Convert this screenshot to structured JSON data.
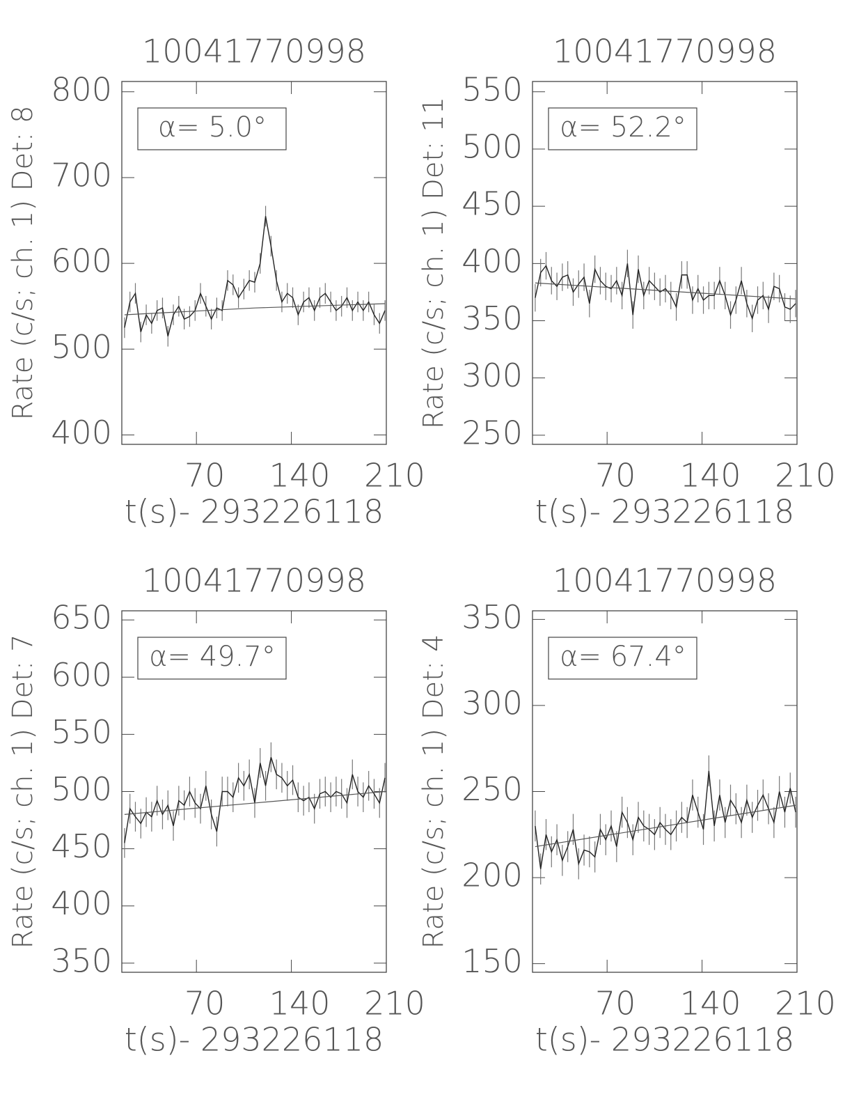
{
  "chart_data": [
    {
      "type": "line",
      "title": "10041770998",
      "xlabel": "t(s)- 293226118",
      "ylabel": "Rate (c/s; ch. 1) Det: 8",
      "annotation": "α= 5.0°",
      "color": "#222",
      "x": [
        17,
        21,
        25,
        29,
        33,
        37,
        41,
        45,
        49,
        53,
        57,
        61,
        65,
        69,
        73,
        77,
        81,
        85,
        89,
        93,
        97,
        101,
        105,
        109,
        113,
        117,
        121,
        125,
        129,
        133,
        137,
        141,
        145,
        149,
        153,
        157,
        161,
        165,
        169,
        173,
        177,
        181,
        185,
        189,
        193,
        197,
        201,
        205,
        209
      ],
      "values": [
        525,
        555,
        565,
        520,
        540,
        530,
        545,
        548,
        515,
        540,
        550,
        535,
        538,
        545,
        565,
        550,
        535,
        548,
        545,
        580,
        575,
        560,
        570,
        580,
        578,
        600,
        655,
        620,
        580,
        555,
        565,
        560,
        540,
        555,
        560,
        545,
        560,
        565,
        555,
        545,
        550,
        560,
        545,
        555,
        545,
        555,
        540,
        530,
        545
      ],
      "error": 12,
      "fit_x": [
        17,
        113,
        209
      ],
      "fit_values": [
        540,
        548,
        553
      ],
      "xlim": [
        15,
        210
      ],
      "ylim": [
        389,
        812
      ],
      "xticks": [
        70,
        140,
        210
      ],
      "yticks": [
        400,
        500,
        600,
        700,
        800
      ]
    },
    {
      "type": "line",
      "title": "10041770998",
      "xlabel": "t(s)- 293226118",
      "ylabel": "Rate (c/s; ch. 1) Det: 11",
      "annotation": "α= 52.2°",
      "color": "#222",
      "x": [
        17,
        21,
        25,
        29,
        33,
        37,
        41,
        45,
        49,
        53,
        57,
        61,
        65,
        69,
        73,
        77,
        81,
        85,
        89,
        93,
        97,
        101,
        105,
        109,
        113,
        117,
        121,
        125,
        129,
        133,
        137,
        141,
        145,
        149,
        153,
        157,
        161,
        165,
        169,
        173,
        177,
        181,
        185,
        189,
        193,
        197,
        201,
        205,
        209
      ],
      "values": [
        370,
        392,
        398,
        385,
        380,
        388,
        390,
        375,
        382,
        388,
        365,
        395,
        385,
        380,
        378,
        385,
        372,
        400,
        355,
        395,
        372,
        385,
        380,
        375,
        378,
        372,
        362,
        390,
        390,
        368,
        378,
        368,
        372,
        372,
        385,
        372,
        355,
        368,
        385,
        365,
        352,
        368,
        372,
        360,
        380,
        378,
        362,
        360,
        365
      ],
      "error": 12,
      "fit_x": [
        17,
        113,
        209
      ],
      "fit_values": [
        383,
        376,
        369
      ],
      "xlim": [
        15,
        210
      ],
      "ylim": [
        242,
        559
      ],
      "xticks": [
        70,
        140,
        210
      ],
      "yticks": [
        250,
        300,
        350,
        400,
        450,
        500,
        550
      ]
    },
    {
      "type": "line",
      "title": "10041770998",
      "xlabel": "t(s)- 293226118",
      "ylabel": "Rate (c/s; ch. 1) Det: 7",
      "annotation": "α= 49.7°",
      "color": "#222",
      "x": [
        17,
        21,
        25,
        29,
        33,
        37,
        41,
        45,
        49,
        53,
        57,
        61,
        65,
        69,
        73,
        77,
        81,
        85,
        89,
        93,
        97,
        101,
        105,
        109,
        113,
        117,
        121,
        125,
        129,
        133,
        137,
        141,
        145,
        149,
        153,
        157,
        161,
        165,
        169,
        173,
        177,
        181,
        185,
        189,
        193,
        197,
        201,
        205,
        209
      ],
      "values": [
        455,
        485,
        478,
        472,
        482,
        478,
        492,
        480,
        488,
        470,
        492,
        488,
        500,
        490,
        485,
        505,
        480,
        465,
        500,
        500,
        495,
        512,
        505,
        515,
        490,
        525,
        505,
        530,
        515,
        512,
        505,
        510,
        495,
        492,
        495,
        485,
        498,
        500,
        495,
        500,
        498,
        490,
        515,
        500,
        495,
        505,
        498,
        490,
        512
      ],
      "error": 13,
      "fit_x": [
        17,
        113,
        209
      ],
      "fit_values": [
        480,
        490,
        500
      ],
      "xlim": [
        15,
        210
      ],
      "ylim": [
        342,
        658
      ],
      "xticks": [
        70,
        140,
        210
      ],
      "yticks": [
        350,
        400,
        450,
        500,
        550,
        600,
        650
      ]
    },
    {
      "type": "line",
      "title": "10041770998",
      "xlabel": "t(s)- 293226118",
      "ylabel": "Rate (c/s; ch. 1) Det: 4",
      "annotation": "α= 67.4°",
      "color": "#222",
      "x": [
        17,
        21,
        25,
        29,
        33,
        37,
        41,
        45,
        49,
        53,
        57,
        61,
        65,
        69,
        73,
        77,
        81,
        85,
        89,
        93,
        97,
        101,
        105,
        109,
        113,
        117,
        121,
        125,
        129,
        133,
        137,
        141,
        145,
        149,
        153,
        157,
        161,
        165,
        169,
        173,
        177,
        181,
        185,
        189,
        193,
        197,
        201,
        205,
        209
      ],
      "values": [
        230,
        205,
        225,
        215,
        222,
        210,
        218,
        228,
        208,
        216,
        215,
        212,
        228,
        222,
        230,
        218,
        238,
        232,
        222,
        235,
        230,
        228,
        225,
        232,
        228,
        225,
        230,
        235,
        232,
        248,
        238,
        228,
        262,
        230,
        248,
        232,
        245,
        240,
        232,
        245,
        235,
        242,
        248,
        240,
        232,
        250,
        238,
        252,
        238
      ],
      "error": 9,
      "fit_x": [
        17,
        113,
        209
      ],
      "fit_values": [
        218,
        230,
        242
      ],
      "xlim": [
        15,
        210
      ],
      "ylim": [
        145,
        355
      ],
      "xticks": [
        70,
        140,
        210
      ],
      "yticks": [
        150,
        200,
        250,
        300,
        350
      ]
    }
  ]
}
